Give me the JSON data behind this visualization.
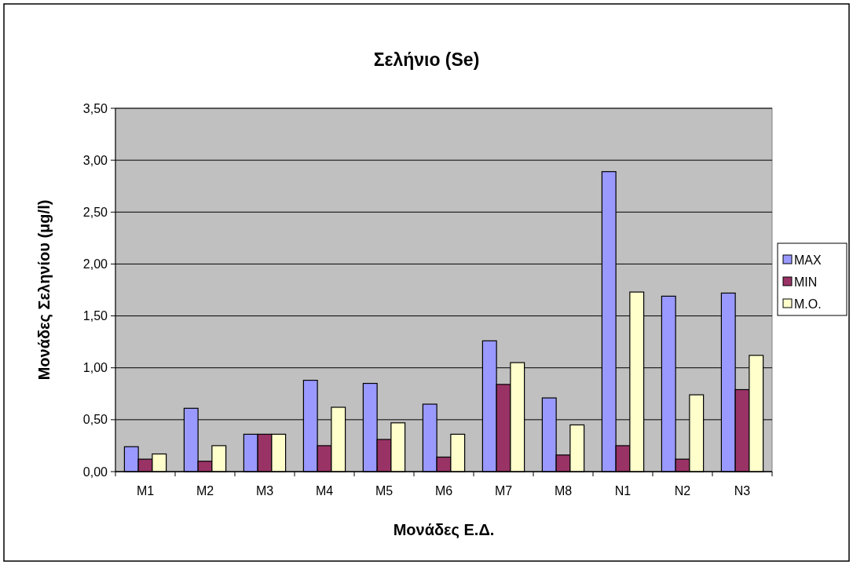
{
  "chart_data": {
    "type": "bar",
    "title": "Σελήνιο (Se)",
    "xlabel": "Μονάδες Ε.Δ.",
    "ylabel": "Μονάδες Σεληνίου (μg/l)",
    "categories": [
      "M1",
      "M2",
      "M3",
      "M4",
      "M5",
      "M6",
      "M7",
      "M8",
      "N1",
      "N2",
      "N3"
    ],
    "series": [
      {
        "name": "MAX",
        "color": "#9999ff",
        "values": [
          0.24,
          0.61,
          0.36,
          0.88,
          0.85,
          0.65,
          1.26,
          0.71,
          2.89,
          1.69,
          1.72
        ]
      },
      {
        "name": "MIN",
        "color": "#993366",
        "values": [
          0.12,
          0.1,
          0.36,
          0.25,
          0.31,
          0.14,
          0.84,
          0.16,
          0.25,
          0.12,
          0.79
        ]
      },
      {
        "name": "M.O.",
        "color": "#ffffcc",
        "values": [
          0.17,
          0.25,
          0.36,
          0.62,
          0.47,
          0.36,
          1.05,
          0.45,
          1.73,
          0.74,
          1.12
        ]
      }
    ],
    "ylim": [
      0,
      3.5
    ],
    "yticks": [
      {
        "value": 0,
        "label": "0,00"
      },
      {
        "value": 0.5,
        "label": "0,50"
      },
      {
        "value": 1,
        "label": "1,00"
      },
      {
        "value": 1.5,
        "label": "1,50"
      },
      {
        "value": 2,
        "label": "2,00"
      },
      {
        "value": 2.5,
        "label": "2,50"
      },
      {
        "value": 3,
        "label": "3,00"
      },
      {
        "value": 3.5,
        "label": "3,50"
      }
    ],
    "grid": "y",
    "legend": "right"
  }
}
